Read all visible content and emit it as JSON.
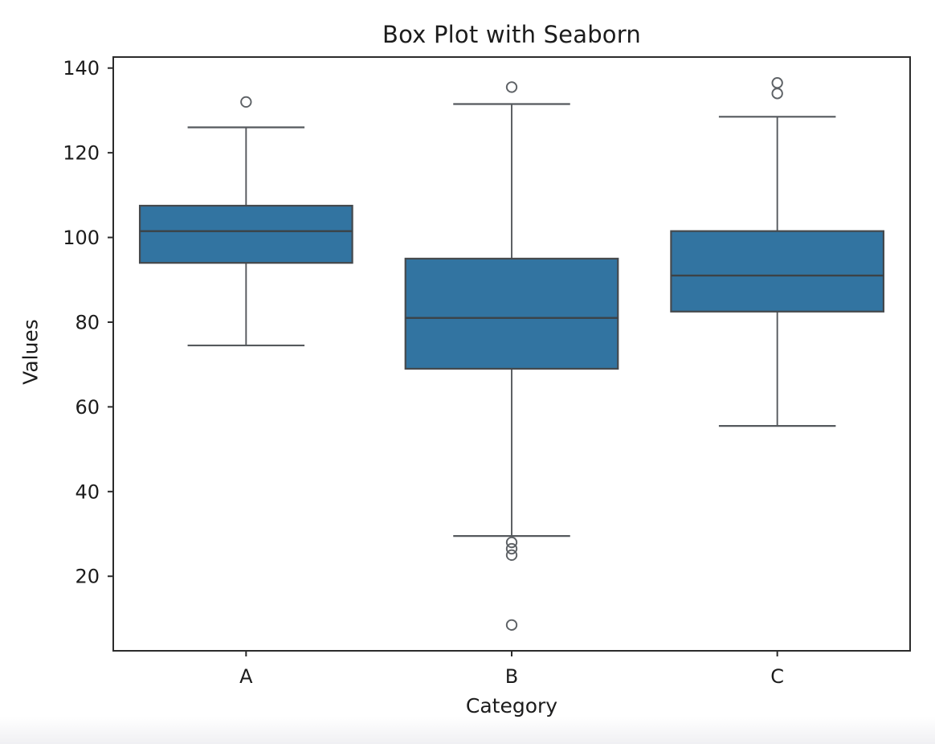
{
  "page": {
    "background": "#ffffff",
    "footer_fade_color": "#f0f0f3"
  },
  "chart_data": {
    "type": "box",
    "title": "Box Plot with Seaborn",
    "xlabel": "Category",
    "ylabel": "Values",
    "categories": [
      "A",
      "B",
      "C"
    ],
    "yticks": [
      20,
      40,
      60,
      80,
      100,
      120,
      140
    ],
    "ylim": [
      2.4,
      142.6
    ],
    "xlim": [
      -0.5,
      2.5
    ],
    "grid": false,
    "legend": null,
    "box_width": 0.8,
    "series": [
      {
        "category": "A",
        "whisker_low": 74.5,
        "q1": 94,
        "median": 101.5,
        "q3": 107.5,
        "whisker_high": 126,
        "outliers": [
          132
        ]
      },
      {
        "category": "B",
        "whisker_low": 29.5,
        "q1": 69,
        "median": 81,
        "q3": 95,
        "whisker_high": 131.5,
        "outliers": [
          135.5,
          28,
          26.5,
          25,
          8.5
        ]
      },
      {
        "category": "C",
        "whisker_low": 55.5,
        "q1": 82.5,
        "median": 91,
        "q3": 101.5,
        "whisker_high": 128.5,
        "outliers": [
          136.5,
          134
        ]
      }
    ],
    "colors": {
      "box_fill": "#3274a1",
      "box_edge": "#45494d",
      "median_line": "#3c4246",
      "whisker": "#55595d",
      "outlier_stroke": "#5d6165",
      "axis": "#2b2b2b",
      "text": "#1c1c1c"
    }
  }
}
